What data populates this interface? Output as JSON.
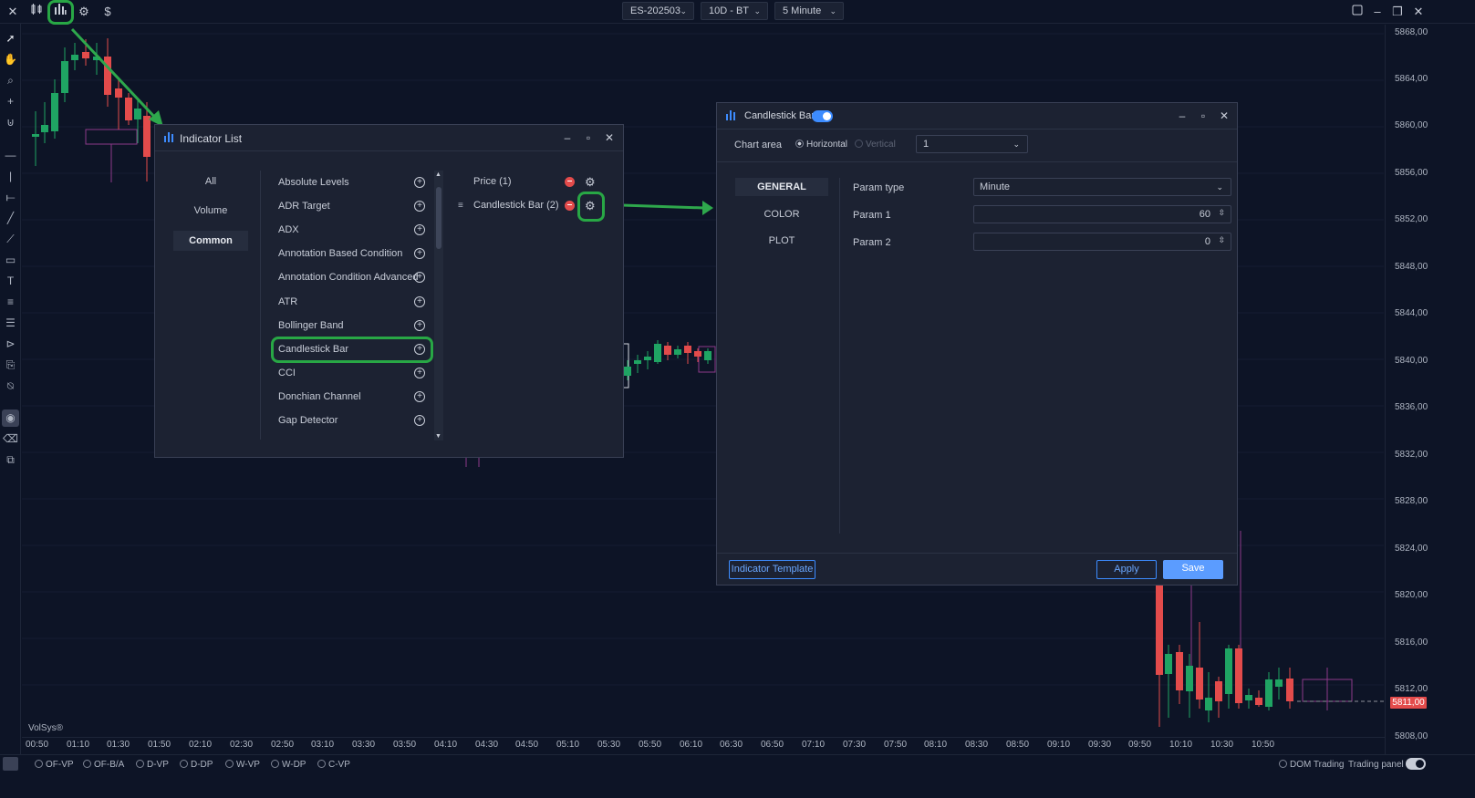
{
  "topbar": {
    "symbol": "ES-202503",
    "range": "10D - BT",
    "interval": "5 Minute"
  },
  "price_labels": [
    "5868,00",
    "5864,00",
    "5860,00",
    "5856,00",
    "5852,00",
    "5848,00",
    "5844,00",
    "5840,00",
    "5836,00",
    "5832,00",
    "5828,00",
    "5824,00",
    "5820,00",
    "5816,00",
    "5812,00",
    "5808,00"
  ],
  "current_price": "5811,00",
  "time_labels": [
    "00:50",
    "01:10",
    "01:30",
    "01:50",
    "02:10",
    "02:30",
    "02:50",
    "03:10",
    "03:30",
    "03:50",
    "04:10",
    "04:30",
    "04:50",
    "05:10",
    "05:30",
    "05:50",
    "06:10",
    "06:30",
    "06:50",
    "07:10",
    "07:30",
    "07:50",
    "08:10",
    "08:30",
    "08:50",
    "09:10",
    "09:30",
    "09:50",
    "10:10",
    "10:30",
    "10:50"
  ],
  "watermark": "VolSys®",
  "bottombar": {
    "items": [
      "OF-VP",
      "OF-B/A",
      "D-VP",
      "D-DP",
      "W-VP",
      "W-DP",
      "C-VP"
    ],
    "dom_trading": "DOM Trading",
    "trading_panel": "Trading panel"
  },
  "indicator_list": {
    "title": "Indicator List",
    "categories": [
      "All",
      "Volume",
      "Common"
    ],
    "active_category": "Common",
    "indicators": [
      "Absolute Levels",
      "ADR Target",
      "ADX",
      "Annotation Based Condition",
      "Annotation Condition Advanced",
      "ATR",
      "Bollinger Band",
      "Candlestick Bar",
      "CCI",
      "Donchian Channel",
      "Gap Detector"
    ],
    "applied": [
      "Price (1)",
      "Candlestick Bar (2)"
    ]
  },
  "settings": {
    "title": "Candlestick Bar",
    "chart_area_label": "Chart area",
    "horizontal": "Horizontal",
    "vertical": "Vertical",
    "area_value": "1",
    "tabs": [
      "GENERAL",
      "COLOR",
      "PLOT"
    ],
    "active_tab": "GENERAL",
    "param_type_label": "Param type",
    "param_type_value": "Minute",
    "param1_label": "Param 1",
    "param1_value": "60",
    "param2_label": "Param 2",
    "param2_value": "0",
    "template_button": "Indicator Template",
    "apply_button": "Apply",
    "save_button": "Save"
  },
  "colors": {
    "bull": "#1fa463",
    "bear": "#e34b4b",
    "accent": "#3d8cff",
    "highlight": "#28a745",
    "background": "#0d1426"
  }
}
